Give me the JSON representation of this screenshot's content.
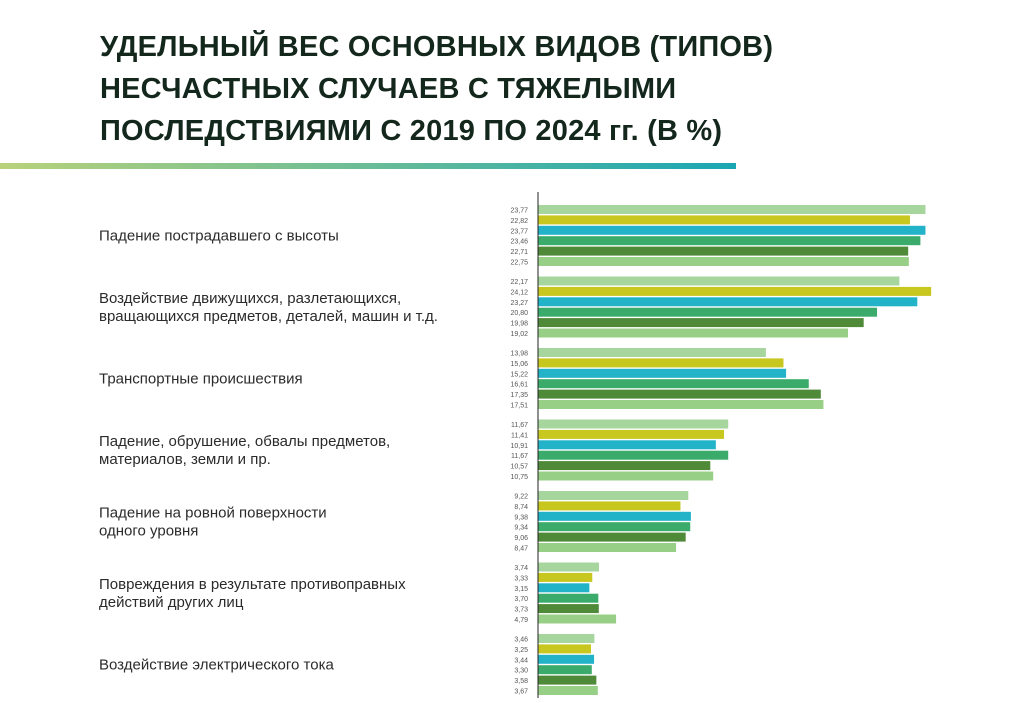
{
  "title_lines": [
    "УДЕЛЬНЫЙ ВЕС ОСНОВНЫХ ВИДОВ (ТИПОВ)",
    "НЕСЧАСТНЫХ СЛУЧАЕВ С ТЯЖЕЛЫМИ",
    "ПОСЛЕДСТВИЯМИ С 2019 ПО 2024 гг. (В %)"
  ],
  "colors": {
    "title": "#13271c",
    "category_text": "#2b2b2b",
    "value_text": "#555555",
    "axis": "#222222",
    "rule_start": "#b8d27a",
    "rule_end": "#1aa6b4",
    "series": [
      "#a6d59d",
      "#c8c720",
      "#22b3c9",
      "#3aab6a",
      "#4e8a38",
      "#98cf86"
    ]
  },
  "chart_data": {
    "type": "bar",
    "orientation": "horizontal",
    "categories": [
      [
        "Падение пострадавшего с высоты"
      ],
      [
        "Воздействие движущихся, разлетающихся,",
        "вращающихся предметов, деталей, машин и т.д."
      ],
      [
        "Транспортные происшествия"
      ],
      [
        "Падение, обрушение, обвалы предметов,",
        "материалов, земли и пр."
      ],
      [
        "Падение на ровной поверхности",
        "одного уровня"
      ],
      [
        "Повреждения в результате противоправных",
        "действий других лиц"
      ],
      [
        "Воздействие электрического тока"
      ]
    ],
    "value_labels": [
      [
        "23,77",
        "22,82",
        "23,77",
        "23,46",
        "22,71",
        "22,75"
      ],
      [
        "22,17",
        "24,12",
        "23,27",
        "20,80",
        "19,98",
        "19,02"
      ],
      [
        "13,98",
        "15,06",
        "15,22",
        "16,61",
        "17,35",
        "17,51"
      ],
      [
        "11,67",
        "11,41",
        "10,91",
        "11,67",
        "10,57",
        "10,75"
      ],
      [
        "9,22",
        "8,74",
        "9,38",
        "9,34",
        "9,06",
        "8,47"
      ],
      [
        "3,74",
        "3,33",
        "3,15",
        "3,70",
        "3,73",
        "4,79"
      ],
      [
        "3,46",
        "3,25",
        "3,44",
        "3,30",
        "3,58",
        "3,67"
      ]
    ],
    "series": [
      {
        "values": [
          23.77,
          22.17,
          13.98,
          11.67,
          9.22,
          3.74,
          3.46
        ]
      },
      {
        "values": [
          22.82,
          24.12,
          15.06,
          11.41,
          8.74,
          3.33,
          3.25
        ]
      },
      {
        "values": [
          23.77,
          23.27,
          15.22,
          10.91,
          9.38,
          3.15,
          3.44
        ]
      },
      {
        "values": [
          23.46,
          20.8,
          16.61,
          11.67,
          9.34,
          3.7,
          3.3
        ]
      },
      {
        "values": [
          22.71,
          19.98,
          17.35,
          10.57,
          9.06,
          3.73,
          3.58
        ]
      },
      {
        "values": [
          22.75,
          19.02,
          17.51,
          10.75,
          8.47,
          4.79,
          3.67
        ]
      }
    ],
    "xlim": [
      0,
      24.5
    ],
    "grid": false,
    "legend": "none"
  }
}
